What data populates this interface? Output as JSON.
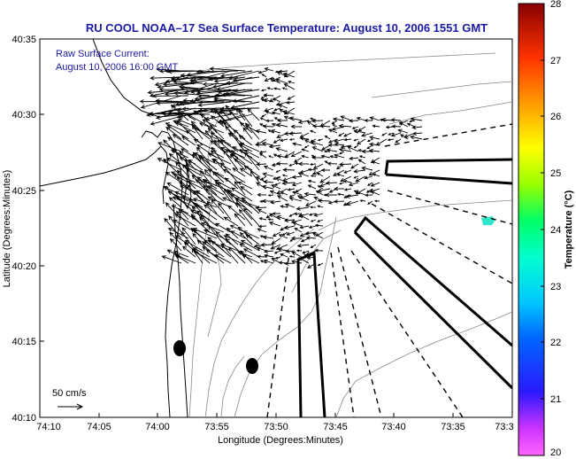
{
  "title": "RU COOL  NOAA–17  Sea Surface Temperature:  August 10, 2006 1551 GMT",
  "annotation": {
    "line1": "Raw Surface Current:",
    "line2": "August 10, 2006 16:00 GMT"
  },
  "scale_label": "50 cm/s",
  "axes": {
    "xlabel": "Longitude (Degrees:Minutes)",
    "ylabel": "Latitude (Degrees:Minutes)",
    "xticks": [
      "74:10",
      "74:05",
      "74:00",
      "73:55",
      "73:50",
      "73:45",
      "73:40",
      "73:35",
      "73:3"
    ],
    "yticks": [
      "40:35",
      "40:30",
      "40:25",
      "40:20",
      "40:15",
      "40:10"
    ]
  },
  "colorbar": {
    "label": "Temperature (°C)",
    "ticks": [
      "28",
      "27",
      "26",
      "25",
      "24",
      "23",
      "22",
      "21",
      "20"
    ],
    "colors": [
      "#7f0000",
      "#cc0000",
      "#ff3300",
      "#ff9900",
      "#ffee00",
      "#88ff00",
      "#00ff80",
      "#00e0ff",
      "#0090ff",
      "#0020ff",
      "#6600cc",
      "#ff00ff"
    ]
  }
}
